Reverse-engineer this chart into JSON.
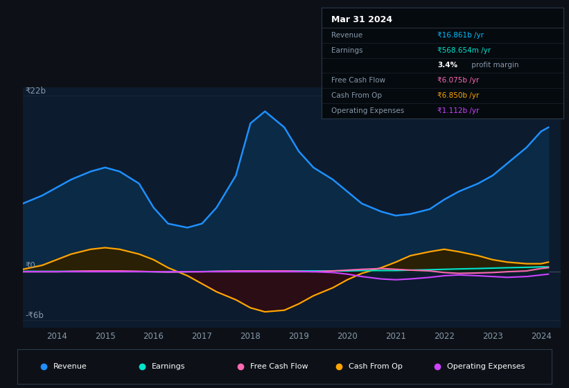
{
  "bg_color": "#0d1117",
  "plot_bg_color": "#0d1b2e",
  "title": "Mar 31 2024",
  "ylabel_top": "₹22b",
  "ylabel_zero": "₹0",
  "ylabel_bot": "-₹6b",
  "years": [
    2013.3,
    2013.7,
    2014.0,
    2014.3,
    2014.7,
    2015.0,
    2015.3,
    2015.7,
    2016.0,
    2016.3,
    2016.7,
    2017.0,
    2017.3,
    2017.7,
    2018.0,
    2018.3,
    2018.7,
    2019.0,
    2019.3,
    2019.7,
    2020.0,
    2020.3,
    2020.7,
    2021.0,
    2021.3,
    2021.7,
    2022.0,
    2022.3,
    2022.7,
    2023.0,
    2023.3,
    2023.7,
    2024.0,
    2024.15
  ],
  "revenue": [
    8.5,
    9.5,
    10.5,
    11.5,
    12.5,
    13.0,
    12.5,
    11.0,
    8.0,
    6.0,
    5.5,
    6.0,
    8.0,
    12.0,
    18.5,
    20.0,
    18.0,
    15.0,
    13.0,
    11.5,
    10.0,
    8.5,
    7.5,
    7.0,
    7.2,
    7.8,
    9.0,
    10.0,
    11.0,
    12.0,
    13.5,
    15.5,
    17.5,
    18.0
  ],
  "earnings": [
    0.05,
    0.05,
    0.05,
    0.05,
    0.05,
    0.05,
    0.05,
    0.02,
    0.0,
    -0.02,
    0.0,
    0.02,
    0.05,
    0.05,
    0.08,
    0.1,
    0.1,
    0.1,
    0.1,
    0.1,
    0.1,
    0.15,
    0.15,
    0.15,
    0.2,
    0.25,
    0.3,
    0.35,
    0.4,
    0.45,
    0.5,
    0.55,
    0.6,
    0.6
  ],
  "free_cash_flow": [
    0.0,
    0.0,
    0.0,
    0.05,
    0.1,
    0.1,
    0.1,
    0.05,
    0.0,
    -0.05,
    0.0,
    0.0,
    0.05,
    0.1,
    0.1,
    0.1,
    0.1,
    0.05,
    0.0,
    0.1,
    0.2,
    0.3,
    0.4,
    0.3,
    0.2,
    0.1,
    -0.1,
    -0.2,
    -0.15,
    -0.1,
    0.0,
    0.1,
    0.4,
    0.5
  ],
  "cash_from_op": [
    0.3,
    0.8,
    1.5,
    2.2,
    2.8,
    3.0,
    2.8,
    2.2,
    1.5,
    0.5,
    -0.5,
    -1.5,
    -2.5,
    -3.5,
    -4.5,
    -5.0,
    -4.8,
    -4.0,
    -3.0,
    -2.0,
    -1.0,
    -0.2,
    0.5,
    1.2,
    2.0,
    2.5,
    2.8,
    2.5,
    2.0,
    1.5,
    1.2,
    1.0,
    1.0,
    1.2
  ],
  "op_expenses": [
    0.0,
    0.0,
    0.0,
    0.0,
    0.0,
    0.0,
    0.0,
    0.0,
    0.0,
    0.0,
    0.0,
    0.0,
    0.0,
    0.0,
    0.0,
    0.0,
    0.0,
    0.0,
    0.0,
    -0.1,
    -0.3,
    -0.6,
    -0.9,
    -1.0,
    -0.9,
    -0.7,
    -0.5,
    -0.4,
    -0.5,
    -0.6,
    -0.7,
    -0.6,
    -0.4,
    -0.3
  ],
  "revenue_color": "#1e90ff",
  "revenue_fill": "#0a2a45",
  "earnings_color": "#00e5cc",
  "earnings_fill": "#002820",
  "free_cash_flow_color": "#ff69b4",
  "cash_from_op_color": "#ffa500",
  "cash_from_op_fill_pos": "#2a2005",
  "cash_from_op_fill_neg": "#2a0d15",
  "op_expenses_color": "#cc44ff",
  "grid_color": "#1e2a38",
  "tick_color": "#8899aa",
  "x_tick_years": [
    2014,
    2015,
    2016,
    2017,
    2018,
    2019,
    2020,
    2021,
    2022,
    2023,
    2024
  ],
  "ylim": [
    -7.0,
    23.0
  ],
  "xlim": [
    2013.3,
    2024.4
  ],
  "info_rows": [
    {
      "label": "Revenue",
      "value": "₹16.861b /yr",
      "vcolor": "#00bfff"
    },
    {
      "label": "Earnings",
      "value": "₹568.654m /yr",
      "vcolor": "#00e5cc"
    },
    {
      "label": "",
      "value": "3.4%",
      "vcolor": "#ffffff",
      "suffix": " profit margin",
      "bold": true
    },
    {
      "label": "Free Cash Flow",
      "value": "₹6.075b /yr",
      "vcolor": "#ff69b4"
    },
    {
      "label": "Cash From Op",
      "value": "₹6.850b /yr",
      "vcolor": "#ffa500"
    },
    {
      "label": "Operating Expenses",
      "value": "₹1.112b /yr",
      "vcolor": "#cc44ff"
    }
  ],
  "legend_items": [
    {
      "label": "Revenue",
      "color": "#1e90ff"
    },
    {
      "label": "Earnings",
      "color": "#00e5cc"
    },
    {
      "label": "Free Cash Flow",
      "color": "#ff69b4"
    },
    {
      "label": "Cash From Op",
      "color": "#ffa500"
    },
    {
      "label": "Operating Expenses",
      "color": "#cc44ff"
    }
  ]
}
